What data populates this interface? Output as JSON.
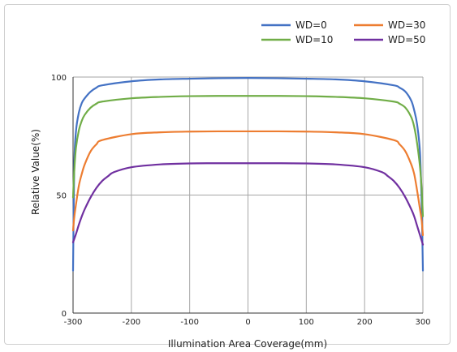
{
  "chart_data": {
    "type": "line",
    "xlabel": "Illumination Area Coverage(mm)",
    "ylabel": "Relative Value(%)",
    "xlim": [
      -300,
      300
    ],
    "ylim": [
      0,
      100
    ],
    "x_ticks": [
      "-300",
      "-200",
      "-100",
      "0",
      "100",
      "200",
      "300"
    ],
    "y_ticks": [
      "0",
      "50",
      "100"
    ],
    "grid": true,
    "legend_position": "top-right",
    "series": [
      {
        "name": "WD=0",
        "color": "#4472C4",
        "x": [
          -300,
          -298,
          -295,
          -290,
          -285,
          -280,
          -270,
          -260,
          -250,
          -200,
          -150,
          -100,
          -50,
          0,
          50,
          100,
          150,
          200,
          250,
          260,
          270,
          280,
          285,
          290,
          295,
          298,
          300
        ],
        "y": [
          18,
          62,
          77,
          85,
          89,
          91,
          93.8,
          95.5,
          96.5,
          98.2,
          99,
          99.3,
          99.5,
          99.6,
          99.5,
          99.3,
          99,
          98.2,
          96.5,
          95.5,
          93.8,
          90,
          86,
          80,
          68,
          45,
          18
        ]
      },
      {
        "name": "WD=10",
        "color": "#70AD47",
        "x": [
          -300,
          -298,
          -295,
          -290,
          -285,
          -280,
          -270,
          -260,
          -250,
          -200,
          -150,
          -100,
          -50,
          0,
          50,
          100,
          150,
          200,
          250,
          260,
          270,
          280,
          285,
          290,
          295,
          298,
          300
        ],
        "y": [
          49,
          60,
          70,
          77.5,
          81.5,
          84,
          87,
          88.7,
          89.6,
          91,
          91.6,
          91.9,
          92,
          92,
          92,
          91.9,
          91.6,
          91,
          89.6,
          88.7,
          87,
          83,
          79,
          72,
          62,
          52,
          41
        ]
      },
      {
        "name": "WD=30",
        "color": "#ED7D31",
        "x": [
          -300,
          -298,
          -295,
          -290,
          -285,
          -280,
          -270,
          -260,
          -250,
          -200,
          -150,
          -100,
          -50,
          0,
          50,
          100,
          150,
          200,
          250,
          260,
          270,
          280,
          285,
          290,
          295,
          298,
          300
        ],
        "y": [
          35,
          40.5,
          46,
          54,
          59,
          63,
          68.5,
          71.5,
          73.3,
          75.8,
          76.6,
          76.9,
          77,
          77,
          77,
          76.9,
          76.6,
          75.8,
          73.3,
          71.5,
          68.5,
          63,
          59,
          52,
          44,
          39,
          33
        ]
      },
      {
        "name": "WD=50",
        "color": "#7030A0",
        "x": [
          -300,
          -295,
          -290,
          -285,
          -280,
          -270,
          -260,
          -250,
          -240,
          -230,
          -200,
          -150,
          -100,
          -50,
          0,
          50,
          100,
          150,
          200,
          230,
          240,
          250,
          260,
          270,
          280,
          285,
          290,
          295,
          300
        ],
        "y": [
          30,
          33.5,
          37.5,
          41,
          44,
          49,
          53,
          56,
          58,
          59.7,
          61.8,
          63,
          63.4,
          63.5,
          63.5,
          63.5,
          63.4,
          63,
          61.8,
          59.7,
          58,
          56,
          53,
          49,
          44,
          41,
          37,
          33,
          29
        ]
      }
    ]
  }
}
